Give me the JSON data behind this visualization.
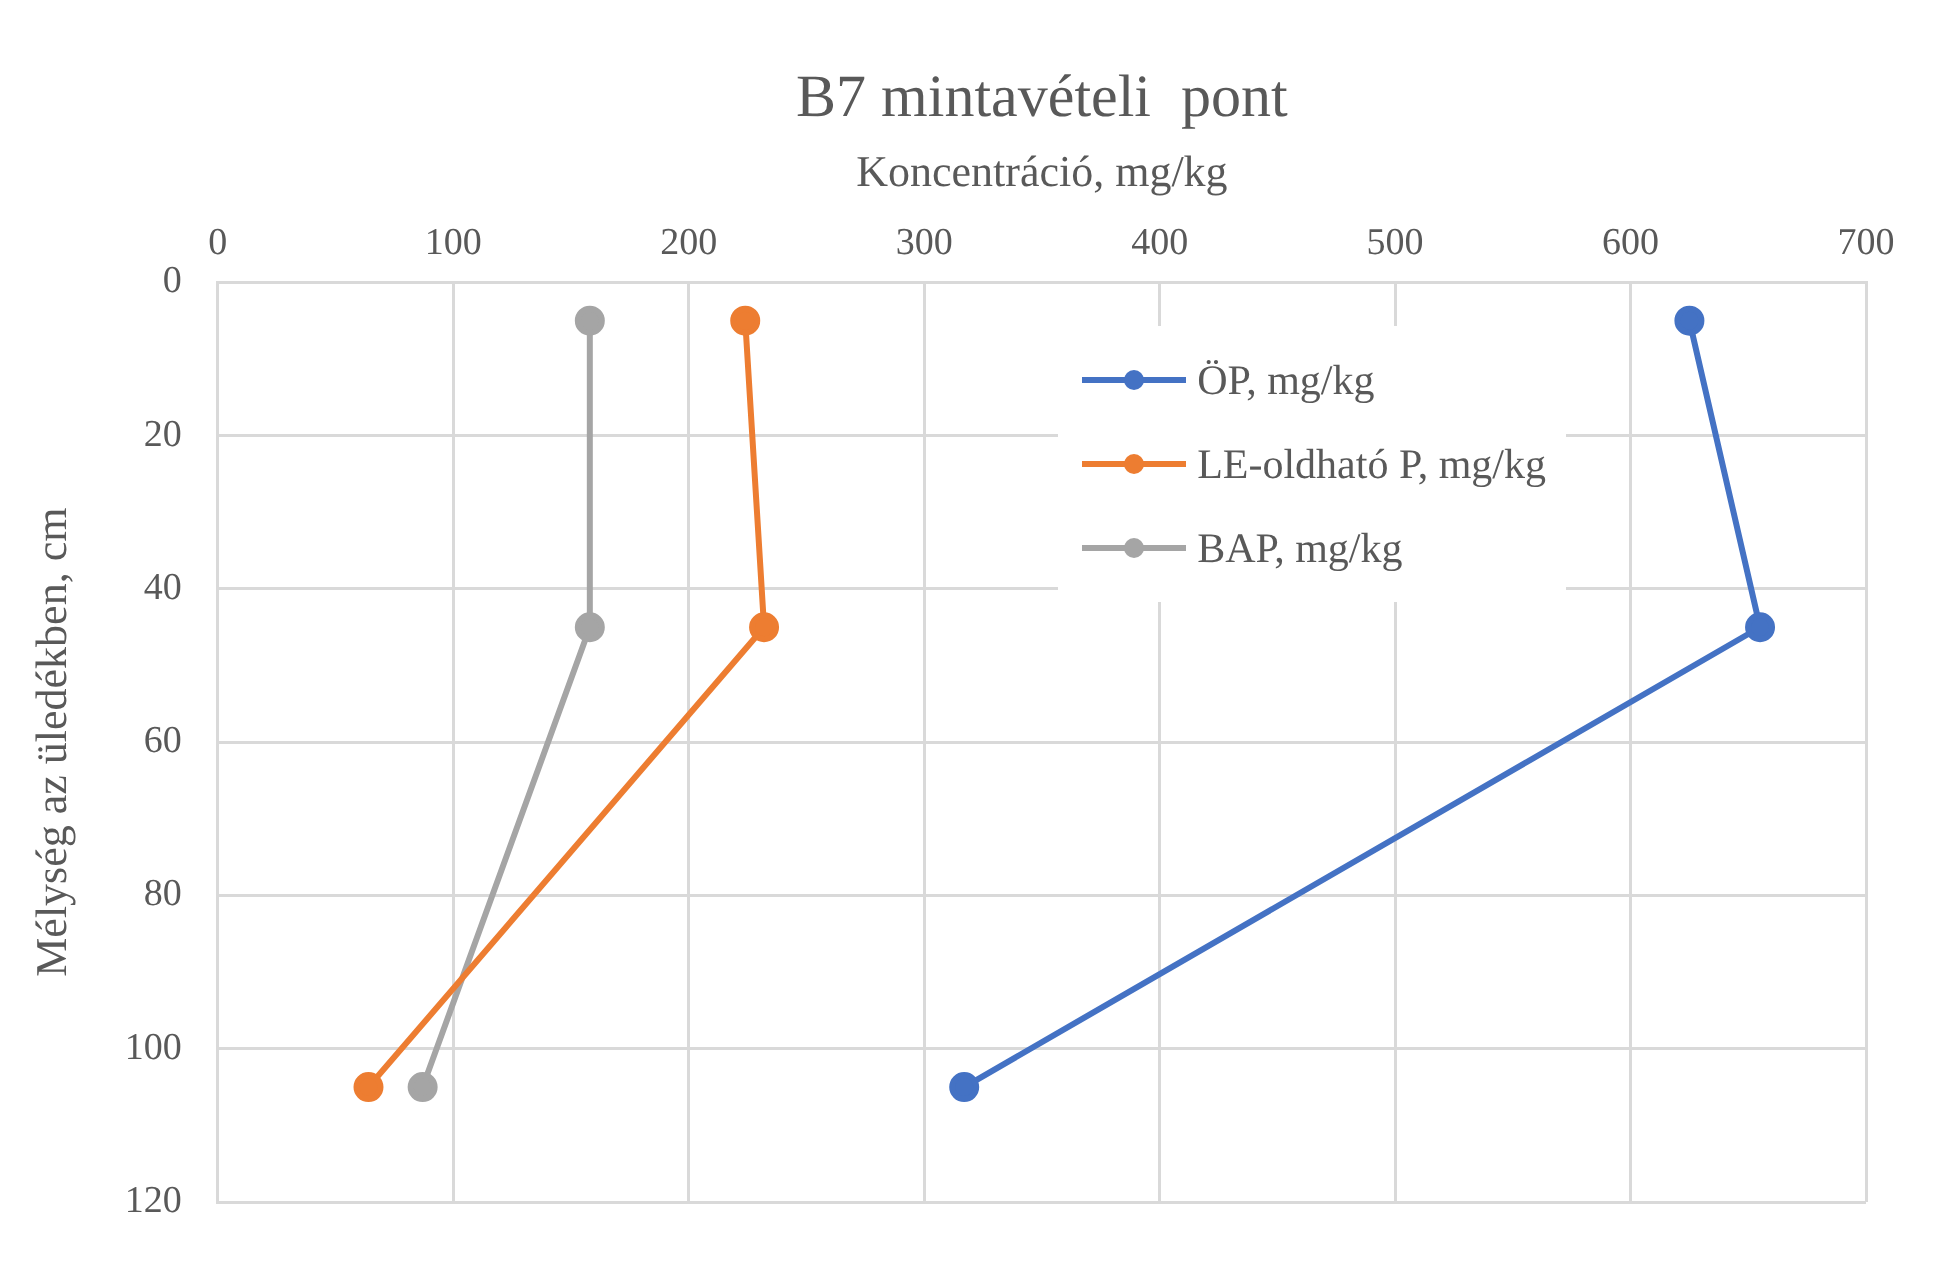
{
  "chart_data": {
    "type": "line",
    "title": "B7 mintavételi  pont",
    "xlabel": "Koncentráció, mg/kg",
    "ylabel": "Mélység az üledékben, cm",
    "xlim": [
      0,
      700
    ],
    "xticks": [
      0,
      100,
      200,
      300,
      400,
      500,
      600,
      700
    ],
    "ylim": [
      120,
      0
    ],
    "yticks": [
      0,
      20,
      40,
      60,
      80,
      100,
      120
    ],
    "grid": true,
    "legend": "top right",
    "marker": "circle",
    "line_style": "solid",
    "series": [
      {
        "name": "ÖP, mg/kg",
        "color": "#4472c4",
        "x": [
          625,
          655,
          317
        ],
        "values": [
          5,
          45,
          105
        ]
      },
      {
        "name": "LE-oldható P, mg/kg",
        "color": "#ed7d31",
        "x": [
          224,
          232,
          64
        ],
        "values": [
          5,
          45,
          105
        ]
      },
      {
        "name": "BAP, mg/kg",
        "color": "#a5a5a5",
        "x": [
          158,
          158,
          87
        ],
        "values": [
          5,
          45,
          105
        ]
      }
    ]
  }
}
